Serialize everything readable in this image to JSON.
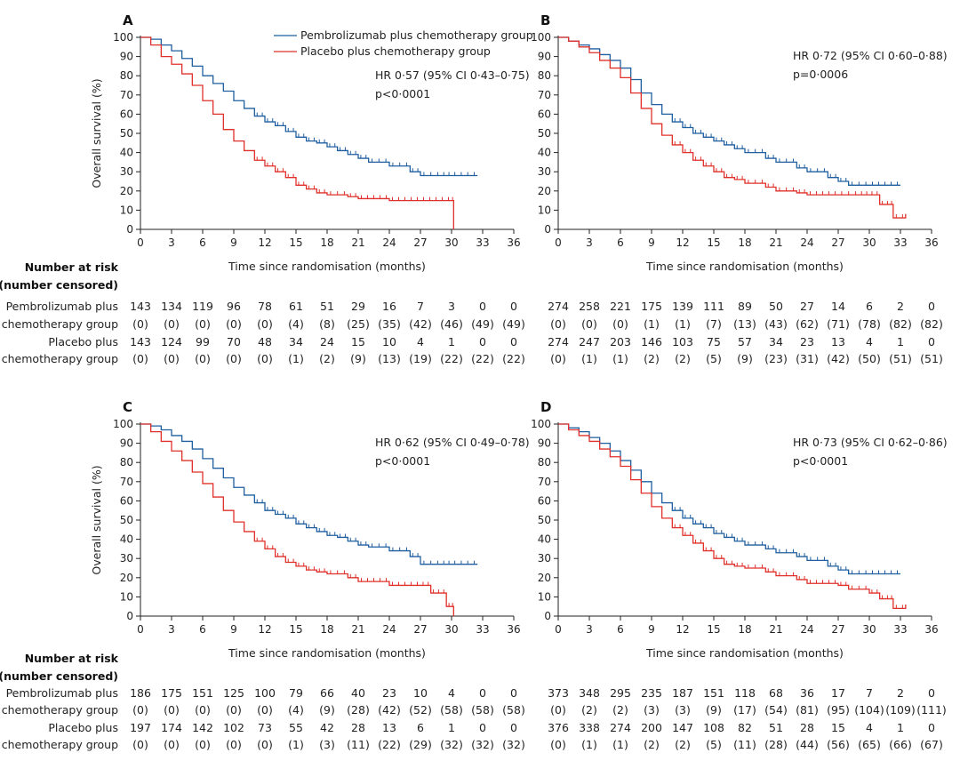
{
  "axis": {
    "x_label": "Time since randomisation (months)",
    "y_label": "Overall survival (%)",
    "x_ticks": [
      "0",
      "3",
      "6",
      "9",
      "12",
      "15",
      "18",
      "21",
      "24",
      "27",
      "30",
      "33",
      "36"
    ],
    "y_ticks": [
      "0",
      "10",
      "20",
      "30",
      "40",
      "50",
      "60",
      "70",
      "80",
      "90",
      "100"
    ]
  },
  "colors": {
    "pembro": "#1f5fa0",
    "placebo": "#e0302a"
  },
  "legend": {
    "pembro": "Pembrolizumab plus chemotherapy group",
    "placebo": "Placebo plus chemotherapy group"
  },
  "risk_table": {
    "header_line1": "Number at risk",
    "header_line2": "(number censored)",
    "pembro_line1": "Pembrolizumab plus",
    "pembro_line2": "chemotherapy group",
    "placebo_line1": "Placebo plus",
    "placebo_line2": "chemotherapy group"
  },
  "chart_data": [
    {
      "panel": "A",
      "type": "line",
      "title": "A",
      "xlabel": "Time since randomisation (months)",
      "ylabel": "Overall survival (%)",
      "xlim": [
        0,
        36
      ],
      "ylim": [
        0,
        100
      ],
      "hr_text": "HR 0·57 (95% CI 0·43–0·75)",
      "p_text": "p<0·0001",
      "show_legend": true,
      "series": [
        {
          "name": "Pembrolizumab plus chemotherapy group",
          "key": "pembro",
          "x": [
            0,
            1,
            2,
            3,
            4,
            5,
            6,
            7,
            8,
            9,
            10,
            11,
            12,
            13,
            14,
            15,
            16,
            17,
            18,
            19,
            20,
            21,
            22,
            24,
            26,
            27,
            29,
            30,
            32.5
          ],
          "y": [
            100,
            99,
            96,
            93,
            89,
            85,
            80,
            76,
            72,
            67,
            63,
            59,
            56,
            54,
            51,
            48,
            46,
            45,
            43,
            41,
            39,
            37,
            35,
            33,
            30,
            28,
            28,
            28,
            28
          ]
        },
        {
          "name": "Placebo plus chemotherapy group",
          "key": "placebo",
          "x": [
            0,
            1,
            2,
            3,
            4,
            5,
            6,
            7,
            8,
            9,
            10,
            11,
            12,
            13,
            14,
            15,
            16,
            17,
            18,
            20,
            21,
            24,
            27,
            30,
            30.2
          ],
          "y": [
            100,
            96,
            90,
            86,
            81,
            75,
            67,
            60,
            52,
            46,
            41,
            36,
            33,
            30,
            27,
            23,
            21,
            19,
            18,
            17,
            16,
            15,
            15,
            15,
            0
          ]
        }
      ],
      "risk_pembro": [
        "143",
        "134",
        "119",
        "96",
        "78",
        "61",
        "51",
        "29",
        "16",
        "7",
        "3",
        "0",
        "0"
      ],
      "censor_pembro": [
        "(0)",
        "(0)",
        "(0)",
        "(0)",
        "(0)",
        "(4)",
        "(8)",
        "(25)",
        "(35)",
        "(42)",
        "(46)",
        "(49)",
        "(49)"
      ],
      "risk_placebo": [
        "143",
        "124",
        "99",
        "70",
        "48",
        "34",
        "24",
        "15",
        "10",
        "4",
        "1",
        "0",
        "0"
      ],
      "censor_placebo": [
        "(0)",
        "(0)",
        "(0)",
        "(0)",
        "(0)",
        "(1)",
        "(2)",
        "(9)",
        "(13)",
        "(19)",
        "(22)",
        "(22)",
        "(22)"
      ]
    },
    {
      "panel": "B",
      "type": "line",
      "title": "B",
      "xlabel": "Time since randomisation (months)",
      "ylabel": "",
      "xlim": [
        0,
        36
      ],
      "ylim": [
        0,
        100
      ],
      "hr_text": "HR 0·72 (95% CI 0·60–0·88)",
      "p_text": "p=0·0006",
      "show_legend": false,
      "series": [
        {
          "name": "Pembrolizumab plus chemotherapy group",
          "key": "pembro",
          "x": [
            0,
            1,
            2,
            3,
            4,
            5,
            6,
            7,
            8,
            9,
            10,
            11,
            12,
            13,
            14,
            15,
            16,
            17,
            18,
            20,
            21,
            23,
            24,
            26,
            27,
            28,
            30,
            33
          ],
          "y": [
            100,
            98,
            96,
            94,
            91,
            88,
            84,
            78,
            71,
            65,
            60,
            56,
            53,
            50,
            48,
            46,
            44,
            42,
            40,
            37,
            35,
            32,
            30,
            27,
            25,
            23,
            23,
            23
          ]
        },
        {
          "name": "Placebo plus chemotherapy group",
          "key": "placebo",
          "x": [
            0,
            1,
            2,
            3,
            4,
            5,
            6,
            7,
            8,
            9,
            10,
            11,
            12,
            13,
            14,
            15,
            16,
            17,
            18,
            20,
            21,
            23,
            24,
            27,
            29,
            30,
            31,
            32,
            32.3,
            33.5
          ],
          "y": [
            100,
            98,
            95,
            92,
            88,
            84,
            79,
            71,
            63,
            55,
            49,
            44,
            40,
            36,
            33,
            30,
            27,
            26,
            24,
            22,
            20,
            19,
            18,
            18,
            18,
            18,
            13,
            13,
            6,
            8
          ]
        }
      ],
      "risk_pembro": [
        "274",
        "258",
        "221",
        "175",
        "139",
        "111",
        "89",
        "50",
        "27",
        "14",
        "6",
        "2",
        "0"
      ],
      "censor_pembro": [
        "(0)",
        "(0)",
        "(0)",
        "(1)",
        "(1)",
        "(7)",
        "(13)",
        "(43)",
        "(62)",
        "(71)",
        "(78)",
        "(82)",
        "(82)"
      ],
      "risk_placebo": [
        "274",
        "247",
        "203",
        "146",
        "103",
        "75",
        "57",
        "34",
        "23",
        "13",
        "4",
        "1",
        "0"
      ],
      "censor_placebo": [
        "(0)",
        "(1)",
        "(1)",
        "(2)",
        "(2)",
        "(5)",
        "(9)",
        "(23)",
        "(31)",
        "(42)",
        "(50)",
        "(51)",
        "(51)"
      ]
    },
    {
      "panel": "C",
      "type": "line",
      "title": "C",
      "xlabel": "Time since randomisation (months)",
      "ylabel": "Overall survival (%)",
      "xlim": [
        0,
        36
      ],
      "ylim": [
        0,
        100
      ],
      "hr_text": "HR 0·62 (95% CI 0·49–0·78)",
      "p_text": "p<0·0001",
      "show_legend": false,
      "series": [
        {
          "name": "Pembrolizumab plus chemotherapy group",
          "key": "pembro",
          "x": [
            0,
            1,
            2,
            3,
            4,
            5,
            6,
            7,
            8,
            9,
            10,
            11,
            12,
            13,
            14,
            15,
            16,
            17,
            18,
            19,
            20,
            21,
            22,
            24,
            26,
            27,
            29,
            30,
            32.5
          ],
          "y": [
            100,
            99,
            97,
            94,
            91,
            87,
            82,
            77,
            72,
            67,
            63,
            59,
            55,
            53,
            51,
            48,
            46,
            44,
            42,
            41,
            39,
            37,
            36,
            34,
            31,
            27,
            27,
            27,
            27
          ]
        },
        {
          "name": "Placebo plus chemotherapy group",
          "key": "placebo",
          "x": [
            0,
            1,
            2,
            3,
            4,
            5,
            6,
            7,
            8,
            9,
            10,
            11,
            12,
            13,
            14,
            15,
            16,
            17,
            18,
            20,
            21,
            24,
            27,
            28,
            29,
            29.5,
            30,
            30.2
          ],
          "y": [
            100,
            96,
            91,
            86,
            81,
            75,
            69,
            62,
            55,
            49,
            44,
            39,
            35,
            31,
            28,
            26,
            24,
            23,
            22,
            20,
            18,
            16,
            16,
            12,
            12,
            5,
            5,
            0
          ]
        }
      ],
      "risk_pembro": [
        "186",
        "175",
        "151",
        "125",
        "100",
        "79",
        "66",
        "40",
        "23",
        "10",
        "4",
        "0",
        "0"
      ],
      "censor_pembro": [
        "(0)",
        "(0)",
        "(0)",
        "(0)",
        "(0)",
        "(4)",
        "(9)",
        "(28)",
        "(42)",
        "(52)",
        "(58)",
        "(58)",
        "(58)"
      ],
      "risk_placebo": [
        "197",
        "174",
        "142",
        "102",
        "73",
        "55",
        "42",
        "28",
        "13",
        "6",
        "1",
        "0",
        "0"
      ],
      "censor_placebo": [
        "(0)",
        "(0)",
        "(0)",
        "(0)",
        "(0)",
        "(1)",
        "(3)",
        "(11)",
        "(22)",
        "(29)",
        "(32)",
        "(32)",
        "(32)"
      ]
    },
    {
      "panel": "D",
      "type": "line",
      "title": "D",
      "xlabel": "Time since randomisation (months)",
      "ylabel": "",
      "xlim": [
        0,
        36
      ],
      "ylim": [
        0,
        100
      ],
      "hr_text": "HR 0·73 (95% CI 0·62–0·86)",
      "p_text": "p<0·0001",
      "show_legend": false,
      "series": [
        {
          "name": "Pembrolizumab plus chemotherapy group",
          "key": "pembro",
          "x": [
            0,
            1,
            2,
            3,
            4,
            5,
            6,
            7,
            8,
            9,
            10,
            11,
            12,
            13,
            14,
            15,
            16,
            17,
            18,
            20,
            21,
            23,
            24,
            26,
            27,
            28,
            30,
            33
          ],
          "y": [
            100,
            98,
            96,
            93,
            90,
            86,
            81,
            76,
            70,
            64,
            59,
            55,
            51,
            48,
            46,
            43,
            41,
            39,
            37,
            35,
            33,
            31,
            29,
            26,
            24,
            22,
            22,
            22
          ]
        },
        {
          "name": "Placebo plus chemotherapy group",
          "key": "placebo",
          "x": [
            0,
            1,
            2,
            3,
            4,
            5,
            6,
            7,
            8,
            9,
            10,
            11,
            12,
            13,
            14,
            15,
            16,
            17,
            18,
            20,
            21,
            23,
            24,
            27,
            28,
            30,
            31,
            32,
            32.3,
            33.5
          ],
          "y": [
            100,
            97,
            94,
            91,
            87,
            83,
            78,
            71,
            64,
            57,
            51,
            46,
            42,
            38,
            34,
            30,
            27,
            26,
            25,
            23,
            21,
            19,
            17,
            16,
            14,
            12,
            9,
            9,
            4,
            6
          ]
        }
      ],
      "risk_pembro": [
        "373",
        "348",
        "295",
        "235",
        "187",
        "151",
        "118",
        "68",
        "36",
        "17",
        "7",
        "2",
        "0"
      ],
      "censor_pembro": [
        "(0)",
        "(2)",
        "(2)",
        "(3)",
        "(3)",
        "(9)",
        "(17)",
        "(54)",
        "(81)",
        "(95)",
        "(104)",
        "(109)",
        "(111)"
      ],
      "risk_placebo": [
        "376",
        "338",
        "274",
        "200",
        "147",
        "108",
        "82",
        "51",
        "28",
        "15",
        "4",
        "1",
        "0"
      ],
      "censor_placebo": [
        "(0)",
        "(1)",
        "(1)",
        "(2)",
        "(2)",
        "(5)",
        "(11)",
        "(28)",
        "(44)",
        "(56)",
        "(65)",
        "(66)",
        "(67)"
      ]
    }
  ]
}
